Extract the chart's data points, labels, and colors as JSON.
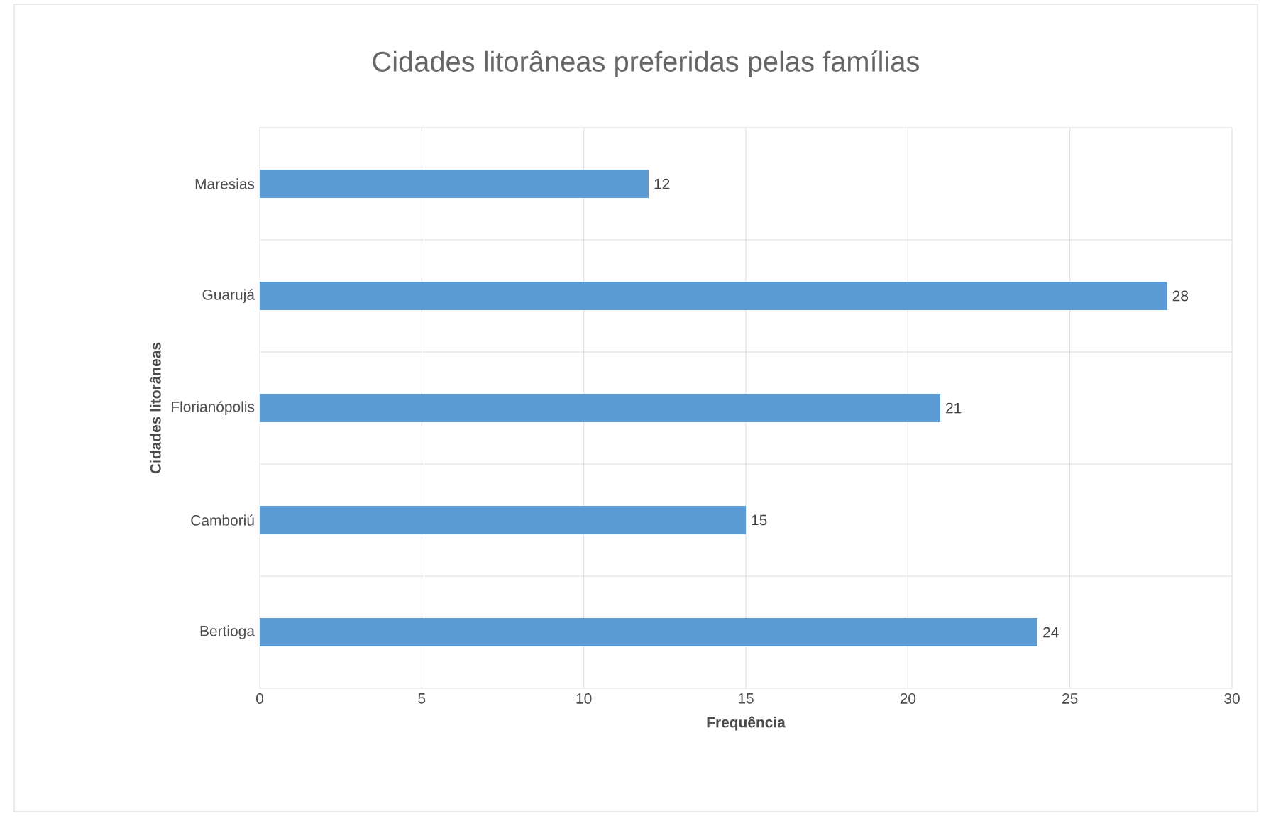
{
  "chart_data": {
    "type": "bar",
    "orientation": "horizontal",
    "title": "Cidades litorâneas preferidas pelas famílias",
    "xlabel": "Frequência",
    "ylabel": "Cidades litorâneas",
    "categories": [
      "Maresias",
      "Guarujá",
      "Florianópolis",
      "Camboriú",
      "Bertioga"
    ],
    "values": [
      12,
      28,
      21,
      15,
      24
    ],
    "color": "#5b9bd5",
    "xlim": [
      0,
      30
    ],
    "xticks": [
      0,
      5,
      10,
      15,
      20,
      25,
      30
    ],
    "grid": true,
    "data_labels": true
  }
}
